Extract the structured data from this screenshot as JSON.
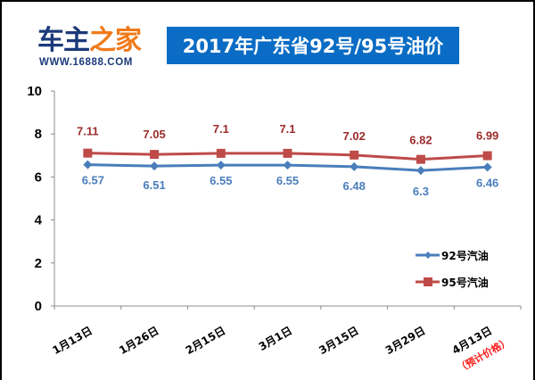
{
  "header": {
    "logo": {
      "name_part1": "车主",
      "name_part2": "之家",
      "url": "WWW.16888.COM"
    },
    "title": "2017年广东省92号/95号油价"
  },
  "colors": {
    "series_92": "#4a7ebb",
    "series_95": "#be4b48",
    "label_92": "#4a7ebb",
    "label_95": "#9b2b2b",
    "title_bg": "#0a6cc4",
    "note": "#ff1a1a"
  },
  "chart_data": {
    "type": "line",
    "title": "2017年广东省92号/95号油价",
    "xlabel": "",
    "ylabel": "",
    "ylim": [
      0,
      10
    ],
    "yticks": [
      0,
      2,
      4,
      6,
      8,
      10
    ],
    "grid": false,
    "legend_position": "right",
    "categories": [
      "1月13日",
      "1月26日",
      "2月15日",
      "3月1日",
      "3月15日",
      "3月29日",
      "4月13日"
    ],
    "category_notes": [
      "",
      "",
      "",
      "",
      "",
      "",
      "（预计价格）"
    ],
    "series": [
      {
        "name": "92号汽油",
        "marker": "diamond",
        "color": "#4a7ebb",
        "values": [
          6.57,
          6.51,
          6.55,
          6.55,
          6.48,
          6.3,
          6.46
        ]
      },
      {
        "name": "95号汽油",
        "marker": "square",
        "color": "#be4b48",
        "values": [
          7.11,
          7.05,
          7.1,
          7.1,
          7.02,
          6.82,
          6.99
        ]
      }
    ]
  }
}
